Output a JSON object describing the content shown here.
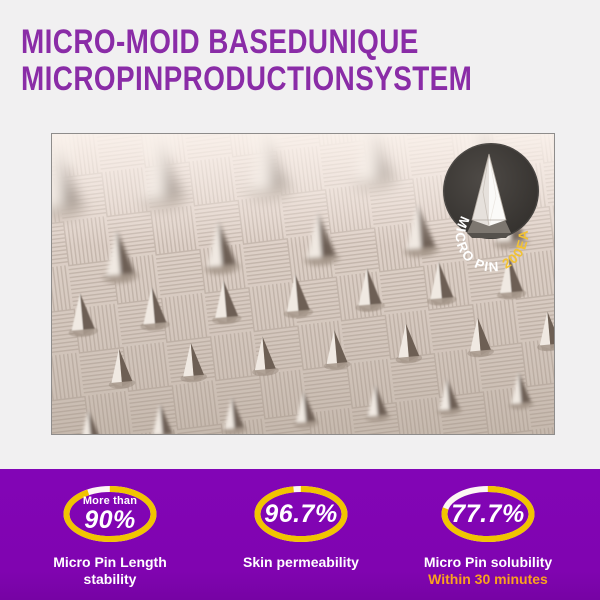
{
  "page": {
    "background_color": "#f1f0f1",
    "accent_purple": "#8205b6",
    "heading_color": "#8a2ca7"
  },
  "header": {
    "title_line1": "MICRO-MOID BASEDUNIQUE",
    "title_line2": "MICROPINPRODUCTIONSYSTEM"
  },
  "photo": {
    "description": "macro photo of micro-pin mold array",
    "badge": {
      "label_white": "MICRO PIN ",
      "label_yellow": "200EA",
      "bg_color": "#38342f",
      "text_color": "#ffffff",
      "accent_color": "#f2c233"
    }
  },
  "stats": {
    "section_bg": "#8205b6",
    "ring_color": "#f1c400",
    "ring_gap_color": "#fdf6f4",
    "value_color": "#ffffff",
    "sublabel_color": "#faa21e",
    "items": [
      {
        "prefix": "More than",
        "value": "90%",
        "percent": 90,
        "label_line1": "Micro Pin Length",
        "label_line2": "stability",
        "sublabel": ""
      },
      {
        "prefix": "",
        "value": "96.7%",
        "percent": 96.7,
        "label_line1": "Skin permeability",
        "label_line2": "",
        "sublabel": ""
      },
      {
        "prefix": "",
        "value": "77.7%",
        "percent": 77.7,
        "label_line1": "Micro Pin solubility",
        "label_line2": "",
        "sublabel": "Within 30 minutes"
      }
    ]
  }
}
